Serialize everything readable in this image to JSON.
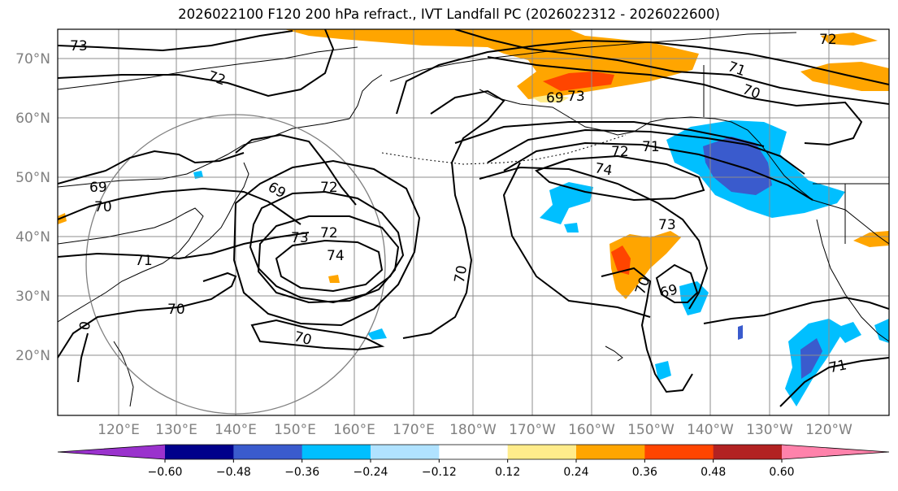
{
  "title": "2026022100 F120 200 hPa refract., IVT Landfall PC (2026022312 - 2026022600)",
  "lat_labels": [
    "70°N",
    "60°N",
    "50°N",
    "40°N",
    "30°N",
    "20°N"
  ],
  "lon_labels": [
    "120°E",
    "130°E",
    "140°E",
    "150°E",
    "160°E",
    "170°E",
    "180°W",
    "170°W",
    "160°W",
    "150°W",
    "140°W",
    "130°W",
    "120°W"
  ],
  "contour_labels": [
    "73",
    "72",
    "72",
    "69",
    "69",
    "70",
    "69",
    "73",
    "72",
    "74",
    "71",
    "70",
    "70",
    "0",
    "70",
    "72",
    "71",
    "74",
    "73",
    "70",
    "69",
    "72",
    "71",
    "70",
    "71",
    "73"
  ],
  "colorbar": {
    "colors": [
      "#9a32cd",
      "#00008b",
      "#3a5bcd",
      "#00bfff",
      "#b0e2ff",
      "#ffffff",
      "#ffec8b",
      "#ffa500",
      "#ff4500",
      "#b22222",
      "#ff82ab"
    ],
    "tick_labels": [
      "−0.60",
      "−0.48",
      "−0.36",
      "−0.24",
      "−0.12",
      "0.12",
      "0.24",
      "0.36",
      "0.48",
      "0.60"
    ]
  },
  "colors": {
    "grid": "#8c8c8c",
    "axis_label": "#808080",
    "contour": "#000000",
    "circle": "#808080"
  }
}
